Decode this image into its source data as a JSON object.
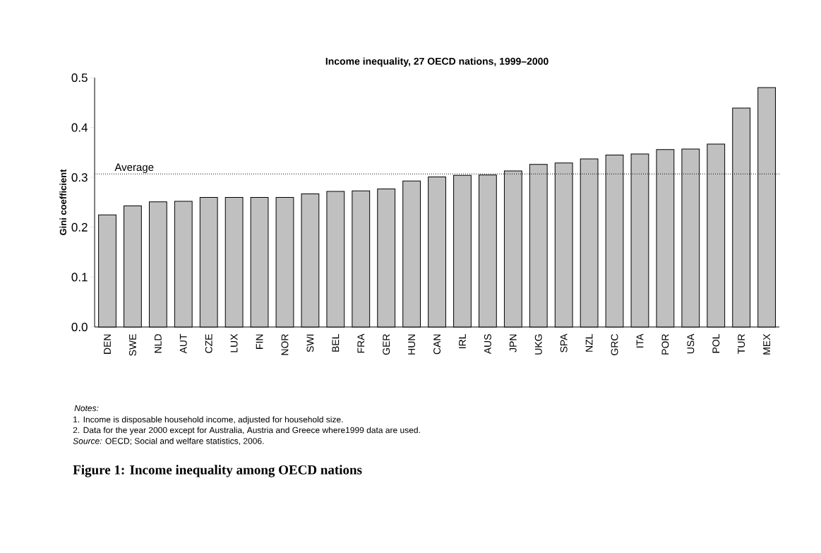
{
  "chart_data": {
    "type": "bar",
    "title": "Income inequality, 27 OECD nations, 1999–2000",
    "ylabel": "Gini coefficient",
    "categories": [
      "DEN",
      "SWE",
      "NLD",
      "AUT",
      "CZE",
      "LUX",
      "FIN",
      "NOR",
      "SWI",
      "BEL",
      "FRA",
      "GER",
      "HUN",
      "CAN",
      "IRL",
      "AUS",
      "JPN",
      "UKG",
      "SPA",
      "NZL",
      "GRC",
      "ITA",
      "POR",
      "USA",
      "POL",
      "TUR",
      "MEX"
    ],
    "values": [
      0.225,
      0.243,
      0.251,
      0.252,
      0.26,
      0.26,
      0.26,
      0.26,
      0.267,
      0.272,
      0.273,
      0.277,
      0.293,
      0.301,
      0.304,
      0.305,
      0.313,
      0.326,
      0.329,
      0.337,
      0.345,
      0.347,
      0.356,
      0.357,
      0.367,
      0.439,
      0.48
    ],
    "color": "#c0c0c0",
    "ylim": [
      0,
      0.5
    ],
    "yticks": [
      {
        "value": 0,
        "label": "0.0"
      },
      0.1,
      0.2,
      0.3,
      0.4,
      0.5
    ],
    "ref_lines": [
      {
        "axis": "y",
        "value": 0.307,
        "label": "Average",
        "line_style": "dotted",
        "color": "#000000"
      }
    ],
    "annotations": [
      "Notes:",
      "1. Income is disposable household income, adjusted for household size.",
      "2. Data for the year 2000 except for Australia, Austria and Greece where1999 data are used.",
      "*Source:* OECD; Social and welfare statistics, 2006.",
      "Figure 1: Income inequality among OECD nations"
    ]
  }
}
